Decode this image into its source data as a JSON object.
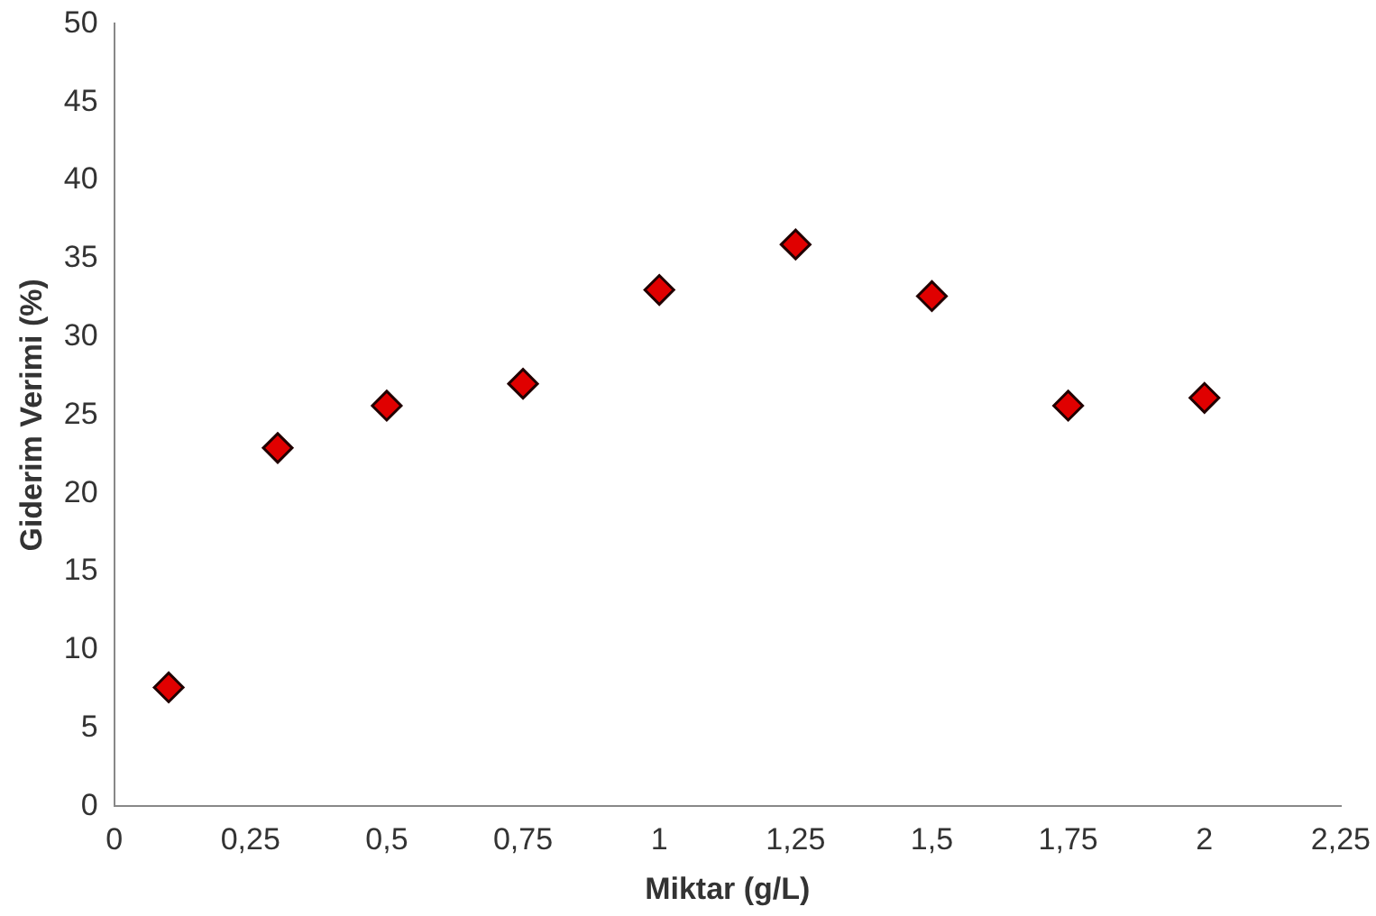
{
  "chart_data": {
    "type": "scatter",
    "xlabel": "Miktar (g/L)",
    "ylabel": "Giderim Verimi (%)",
    "x": [
      0.1,
      0.3,
      0.5,
      0.75,
      1,
      1.25,
      1.5,
      1.75,
      2
    ],
    "series": [
      {
        "color": "#e00000",
        "values": [
          7.6,
          22.9,
          25.6,
          27.0,
          33.0,
          35.9,
          32.6,
          25.6,
          26.1
        ]
      }
    ],
    "xlim": [
      0,
      2.25
    ],
    "xticks": [
      0,
      {
        "value": 0.25,
        "label": "0,25"
      },
      {
        "value": 0.5,
        "label": "0,5"
      },
      {
        "value": 0.75,
        "label": "0,75"
      },
      1,
      {
        "value": 1.25,
        "label": "1,25"
      },
      {
        "value": 1.5,
        "label": "1,5"
      },
      {
        "value": 1.75,
        "label": "1,75"
      },
      2,
      {
        "value": 2.25,
        "label": "2,25"
      }
    ],
    "ylim": [
      0,
      50
    ],
    "yticks": [
      0,
      5,
      10,
      15,
      20,
      25,
      30,
      35,
      40,
      45,
      50
    ],
    "grid": false,
    "legend": false,
    "marker": "diamond"
  }
}
